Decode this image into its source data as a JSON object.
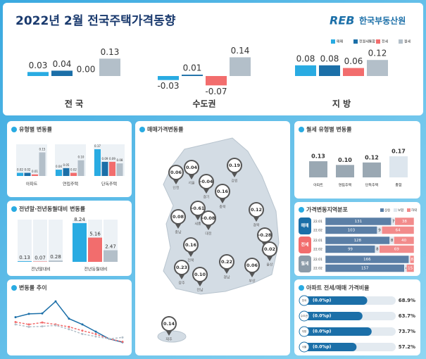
{
  "header": {
    "title": "2022년 2월 전국주택가격동향",
    "logo_mark": "REB",
    "logo_text": "한국부동산원"
  },
  "top": {
    "legend": [
      {
        "name": "매매",
        "color": "#29abe2"
      },
      {
        "name": "전월세통합",
        "color": "#1b6fa8"
      },
      {
        "name": "전세",
        "color": "#f26d6d"
      },
      {
        "name": "월세",
        "color": "#b3bfc9"
      }
    ],
    "groups": [
      {
        "name": "전 국",
        "values": [
          0.03,
          0.04,
          0,
          0.13
        ],
        "value_labels": [
          "0.03",
          "0.04",
          "0.00",
          "0.13"
        ]
      },
      {
        "name": "수도권",
        "values": [
          -0.03,
          0.01,
          -0.07,
          0.14
        ],
        "value_labels": [
          "-0.03",
          "0.01",
          "-0.07",
          "0.14"
        ]
      },
      {
        "name": "지 방",
        "values": [
          0.08,
          0.08,
          0.06,
          0.12
        ],
        "value_labels": [
          "0.08",
          "0.08",
          "0.06",
          "0.12"
        ]
      }
    ]
  },
  "types_panel": {
    "title": "유형별 변동률",
    "colors": [
      "#29abe2",
      "#1b6fa8",
      "#f26d6d",
      "#b3bfc9"
    ],
    "categories": [
      "아파트",
      "연립주택",
      "단독주택"
    ],
    "values": [
      [
        0.02,
        0.02,
        0.01,
        0.15
      ],
      [
        0.04,
        0.05,
        0.02,
        0.1
      ],
      [
        0.17,
        0.09,
        0.09,
        0.08
      ]
    ],
    "value_labels": [
      [
        "0.02",
        "0.02",
        "0.01",
        "0.15"
      ],
      [
        "0.04",
        "0.05",
        "0.02",
        "0.10"
      ],
      [
        "0.17",
        "0.09",
        "0.09",
        "0.08"
      ]
    ]
  },
  "yoy_panel": {
    "title": "전년말·전년동월대비 변동률",
    "colors": [
      "#29abe2",
      "#f26d6d",
      "#b3bfc9"
    ],
    "categories": [
      "전년말대비",
      "전년동월대비"
    ],
    "values": [
      [
        0.13,
        0.07,
        0.28
      ],
      [
        8.24,
        5.16,
        2.47
      ]
    ],
    "value_labels": [
      [
        "0.13",
        "0.07",
        "0.28"
      ],
      [
        "8.24",
        "5.16",
        "2.47"
      ]
    ]
  },
  "trend_panel": {
    "title": "변동률 추이",
    "ylim": [
      -0.1,
      1
    ],
    "series": [
      {
        "color": "#1b6fa8",
        "values": [
          0.55,
          0.62,
          0.63,
          0.88,
          0.52,
          0.4,
          0.25,
          0.1,
          0.03
        ]
      },
      {
        "color": "#f26d6d",
        "values": [
          0.45,
          0.4,
          0.44,
          0.4,
          0.35,
          0.27,
          0.2,
          0.1,
          0.04
        ]
      },
      {
        "color": "#b3bfc9",
        "values": [
          0.4,
          0.35,
          0.36,
          0.38,
          0.3,
          0.2,
          0.15,
          0.1,
          0.13
        ]
      }
    ]
  },
  "map_panel": {
    "title": "매매가격변동률",
    "regions": [
      {
        "name": "인천",
        "value": 0.06,
        "value_label": "0.06"
      },
      {
        "name": "서울",
        "value": 0.04,
        "value_label": "0.04"
      },
      {
        "name": "경기",
        "value": -0.04,
        "value_label": "-0.04"
      },
      {
        "name": "강원",
        "value": 0.19,
        "value_label": "0.19"
      },
      {
        "name": "충북",
        "value": 0.16,
        "value_label": "0.16"
      },
      {
        "name": "충남",
        "value": 0.08,
        "value_label": "0.08"
      },
      {
        "name": "세종",
        "value": -0.61,
        "value_label": "-0.61"
      },
      {
        "name": "대전",
        "value": -0.08,
        "value_label": "-0.08"
      },
      {
        "name": "경북",
        "value": 0.12,
        "value_label": "0.12"
      },
      {
        "name": "대구",
        "value": -0.28,
        "value_label": "-0.28"
      },
      {
        "name": "전북",
        "value": 0.16,
        "value_label": "0.16"
      },
      {
        "name": "울산",
        "value": 0.02,
        "value_label": "0.02"
      },
      {
        "name": "광주",
        "value": 0.23,
        "value_label": "0.23"
      },
      {
        "name": "전남",
        "value": 0.1,
        "value_label": "0.10"
      },
      {
        "name": "경남",
        "value": 0.22,
        "value_label": "0.22"
      },
      {
        "name": "부산",
        "value": 0.06,
        "value_label": "0.06"
      },
      {
        "name": "제주",
        "value": 0.14,
        "value_label": "0.14"
      }
    ]
  },
  "rent_panel": {
    "title": "월세 유형별 변동률",
    "colors": [
      "#9aa8b3",
      "#9aa8b3",
      "#9aa8b3",
      "#dde6ee"
    ],
    "categories": [
      "아파트",
      "연립주택",
      "단독주택",
      "종합"
    ],
    "values": [
      0.13,
      0.1,
      0.12,
      0.17
    ],
    "value_labels": [
      "0.13",
      "0.10",
      "0.12",
      "0.17"
    ]
  },
  "dist_panel": {
    "title": "가격변동지역분포",
    "legend": [
      {
        "name": "상승",
        "color": "#5b7fa6"
      },
      {
        "name": "보합",
        "color": "#dfe6ed"
      },
      {
        "name": "하락",
        "color": "#f28b8b"
      }
    ],
    "rows": [
      {
        "name": "매매",
        "color": "#1b6fa8",
        "periods": [
          {
            "period": "22.01",
            "values": [
              131,
              7,
              38
            ]
          },
          {
            "period": "22.02",
            "values": [
              103,
              9,
              64
            ]
          }
        ]
      },
      {
        "name": "전세",
        "color": "#f26d6d",
        "periods": [
          {
            "period": "22.01",
            "values": [
              128,
              8,
              40
            ]
          },
          {
            "period": "22.02",
            "values": [
              99,
              8,
              69
            ]
          }
        ]
      },
      {
        "name": "월세",
        "color": "#8c9ba8",
        "periods": [
          {
            "period": "22.01",
            "values": [
              166,
              2,
              8
            ]
          },
          {
            "period": "22.02",
            "values": [
              157,
              4,
              15
            ]
          }
        ]
      }
    ]
  },
  "ratio_panel": {
    "title": "아파트 전세/매매 가격비율",
    "xlim": [
      0,
      100
    ],
    "rows": [
      {
        "name": "전국",
        "change": "(0.0%p)",
        "value": 68.9,
        "value_label": "68.9%"
      },
      {
        "name": "수도권",
        "change": "(0.0%p)",
        "value": 63.7,
        "value_label": "63.7%"
      },
      {
        "name": "지방",
        "change": "(0.0%p)",
        "value": 73.7,
        "value_label": "73.7%"
      },
      {
        "name": "서울",
        "change": "(0.0%p)",
        "value": 57.2,
        "value_label": "57.2%"
      }
    ]
  }
}
